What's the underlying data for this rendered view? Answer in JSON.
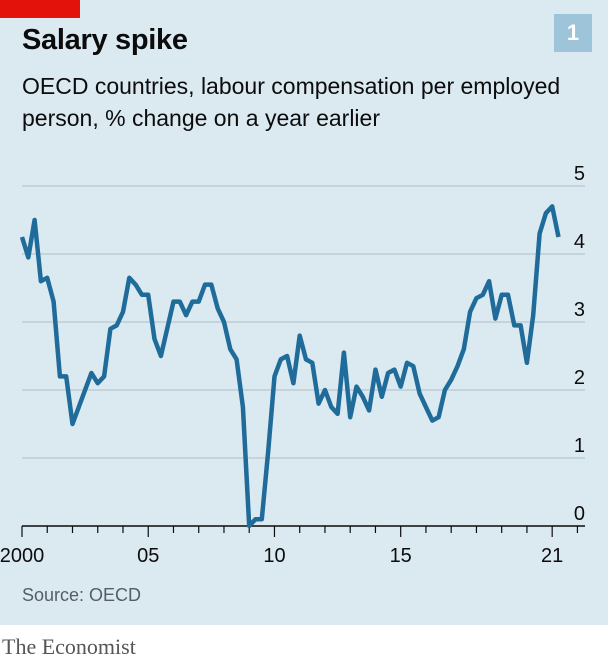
{
  "header": {
    "title": "Salary spike",
    "subtitle": "OECD countries, labour compensation per employed person, % change on a year earlier",
    "chart_number": "1"
  },
  "footer": {
    "source": "Source: OECD",
    "brand": "The Economist"
  },
  "colors": {
    "background": "#dbe9f1",
    "line": "#1f6b9a",
    "accent": "#e3120b",
    "gridline": "#b7c6cf"
  },
  "chart_data": {
    "type": "line",
    "title": "Salary spike",
    "subtitle": "OECD countries, labour compensation per employed person, % change on a year earlier",
    "xlabel": "",
    "ylabel": "",
    "xlim": [
      2000,
      2022.3
    ],
    "ylim": [
      0,
      5
    ],
    "y_ticks": [
      0,
      1,
      2,
      3,
      4,
      5
    ],
    "x_ticks": [
      {
        "value": 2000,
        "label": "2000"
      },
      {
        "value": 2005,
        "label": "05"
      },
      {
        "value": 2010,
        "label": "10"
      },
      {
        "value": 2015,
        "label": "15"
      },
      {
        "value": 2021,
        "label": "21"
      }
    ],
    "grid": "horizontal",
    "series": [
      {
        "name": "",
        "x": [
          2000.0,
          2000.25,
          2000.5,
          2000.75,
          2001.0,
          2001.25,
          2001.5,
          2001.75,
          2002.0,
          2002.25,
          2002.5,
          2002.75,
          2003.0,
          2003.25,
          2003.5,
          2003.75,
          2004.0,
          2004.25,
          2004.5,
          2004.75,
          2005.0,
          2005.25,
          2005.5,
          2005.75,
          2006.0,
          2006.25,
          2006.5,
          2006.75,
          2007.0,
          2007.25,
          2007.5,
          2007.75,
          2008.0,
          2008.25,
          2008.5,
          2008.75,
          2009.0,
          2009.25,
          2009.5,
          2009.75,
          2010.0,
          2010.25,
          2010.5,
          2010.75,
          2011.0,
          2011.25,
          2011.5,
          2011.75,
          2012.0,
          2012.25,
          2012.5,
          2012.75,
          2013.0,
          2013.25,
          2013.5,
          2013.75,
          2014.0,
          2014.25,
          2014.5,
          2014.75,
          2015.0,
          2015.25,
          2015.5,
          2015.75,
          2016.0,
          2016.25,
          2016.5,
          2016.75,
          2017.0,
          2017.25,
          2017.5,
          2017.75,
          2018.0,
          2018.25,
          2018.5,
          2018.75,
          2019.0,
          2019.25,
          2019.5,
          2019.75,
          2020.0,
          2020.25,
          2020.5,
          2020.75,
          2021.0,
          2021.25
        ],
        "values": [
          4.25,
          3.95,
          4.5,
          3.6,
          3.65,
          3.3,
          2.2,
          2.2,
          1.5,
          1.75,
          2.0,
          2.25,
          2.1,
          2.2,
          2.9,
          2.95,
          3.15,
          3.65,
          3.55,
          3.4,
          3.4,
          2.75,
          2.5,
          2.9,
          3.3,
          3.3,
          3.1,
          3.3,
          3.3,
          3.55,
          3.55,
          3.2,
          3.0,
          2.6,
          2.45,
          1.75,
          0.0,
          0.1,
          0.1,
          1.1,
          2.2,
          2.45,
          2.5,
          2.1,
          2.8,
          2.45,
          2.4,
          1.8,
          2.0,
          1.75,
          1.65,
          2.55,
          1.6,
          2.05,
          1.9,
          1.7,
          2.3,
          1.9,
          2.25,
          2.3,
          2.05,
          2.4,
          2.35,
          1.95,
          1.75,
          1.55,
          1.6,
          2.0,
          2.15,
          2.35,
          2.6,
          3.15,
          3.35,
          3.4,
          3.6,
          3.05,
          3.4,
          3.4,
          2.95,
          2.95,
          2.4,
          3.1,
          4.3,
          4.6,
          4.7,
          4.25
        ]
      }
    ]
  }
}
